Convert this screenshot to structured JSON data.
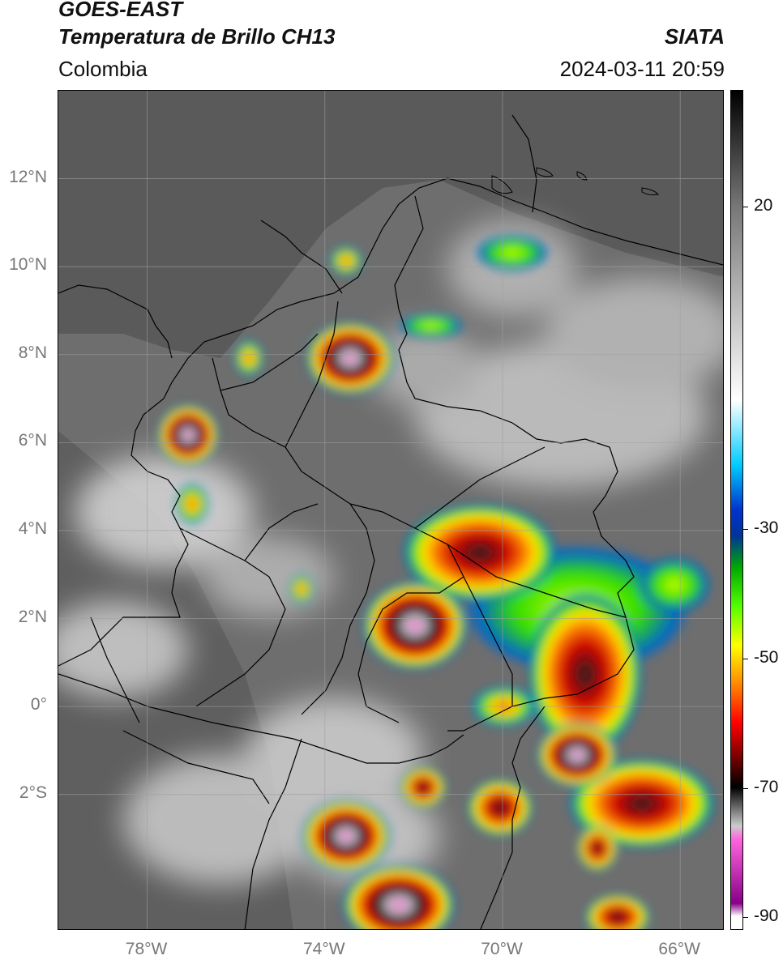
{
  "header": {
    "satellite": "GOES-EAST",
    "product": "Temperatura de Brillo CH13",
    "region": "Colombia",
    "agency": "SIATA",
    "timestamp": "2024-03-11 20:59"
  },
  "axes": {
    "lat_labels": [
      "12°N",
      "10°N",
      "8°N",
      "6°N",
      "4°N",
      "2°N",
      "0°",
      "2°S"
    ],
    "lat_values": [
      12,
      10,
      8,
      6,
      4,
      2,
      0,
      -2
    ],
    "lon_labels": [
      "78°W",
      "74°W",
      "70°W",
      "66°W"
    ],
    "lon_values": [
      -78,
      -74,
      -70,
      -66
    ],
    "extent": {
      "lon_min": -80.0,
      "lon_max": -65.0,
      "lat_min": -5.1,
      "lat_max": 14.0
    },
    "grid": true
  },
  "colorbar": {
    "labels": [
      "20",
      "-30",
      "-50",
      "-70",
      "-90"
    ],
    "values": [
      20,
      -30,
      -50,
      -70,
      -90
    ],
    "range": [
      -92,
      38
    ],
    "stops": [
      {
        "value": 38,
        "color": "#000000"
      },
      {
        "value": 20,
        "color": "#777777"
      },
      {
        "value": -10,
        "color": "#ffffff"
      },
      {
        "value": -20,
        "color": "#00ccff"
      },
      {
        "value": -27,
        "color": "#0033cc"
      },
      {
        "value": -31,
        "color": "#003399"
      },
      {
        "value": -36,
        "color": "#00aa00"
      },
      {
        "value": -42,
        "color": "#55ff00"
      },
      {
        "value": -48,
        "color": "#ffff00"
      },
      {
        "value": -54,
        "color": "#ff8800"
      },
      {
        "value": -60,
        "color": "#ff0000"
      },
      {
        "value": -66,
        "color": "#660000"
      },
      {
        "value": -70,
        "color": "#000000"
      },
      {
        "value": -76,
        "color": "#cccccc"
      },
      {
        "value": -78,
        "color": "#ff66dd"
      },
      {
        "value": -88,
        "color": "#880088"
      },
      {
        "value": -90,
        "color": "#ffffff"
      }
    ]
  },
  "colors": {
    "land": "#7a7a7a",
    "sea": "#5a5a5a",
    "cloud": "#d9d9d9",
    "boundary": "#000000",
    "gridline": "#9a9a9a"
  }
}
